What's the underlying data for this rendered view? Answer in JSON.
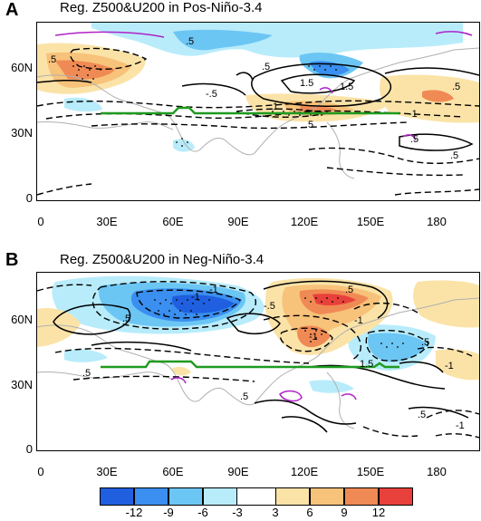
{
  "panels": [
    {
      "letter": "A",
      "title": "Reg. Z500&U200 in Pos-Niño-3.4"
    },
    {
      "letter": "B",
      "title": "Reg. Z500&U200 in Neg-Niño-3.4"
    }
  ],
  "axes": {
    "y_ticks": [
      "60N",
      "30N",
      "0"
    ],
    "x_ticks": [
      "0",
      "30E",
      "60E",
      "90E",
      "120E",
      "150E",
      "180"
    ]
  },
  "contour_labels": {
    "a": [
      ".5",
      ".5",
      ".5",
      "-.5",
      "1.5",
      "1.5",
      "-1",
      ".5",
      ".5",
      ".5",
      "1",
      ".5"
    ],
    "b": [
      ".5",
      "-1",
      "-1",
      "-.5",
      "-1",
      ".5",
      "-1",
      ".5",
      "1.5",
      "-1",
      ".5",
      ".5",
      "-1",
      ".5"
    ]
  },
  "colorbar": {
    "labels": [
      "-12",
      "-9",
      "-6",
      "-3",
      "3",
      "6",
      "9",
      "12"
    ],
    "colors": [
      "#1f5fe0",
      "#3a8ff0",
      "#6cc6f4",
      "#b8ecfb",
      "#ffffff",
      "#fbe3a8",
      "#f7c27a",
      "#f08a55",
      "#e8403a"
    ]
  }
}
